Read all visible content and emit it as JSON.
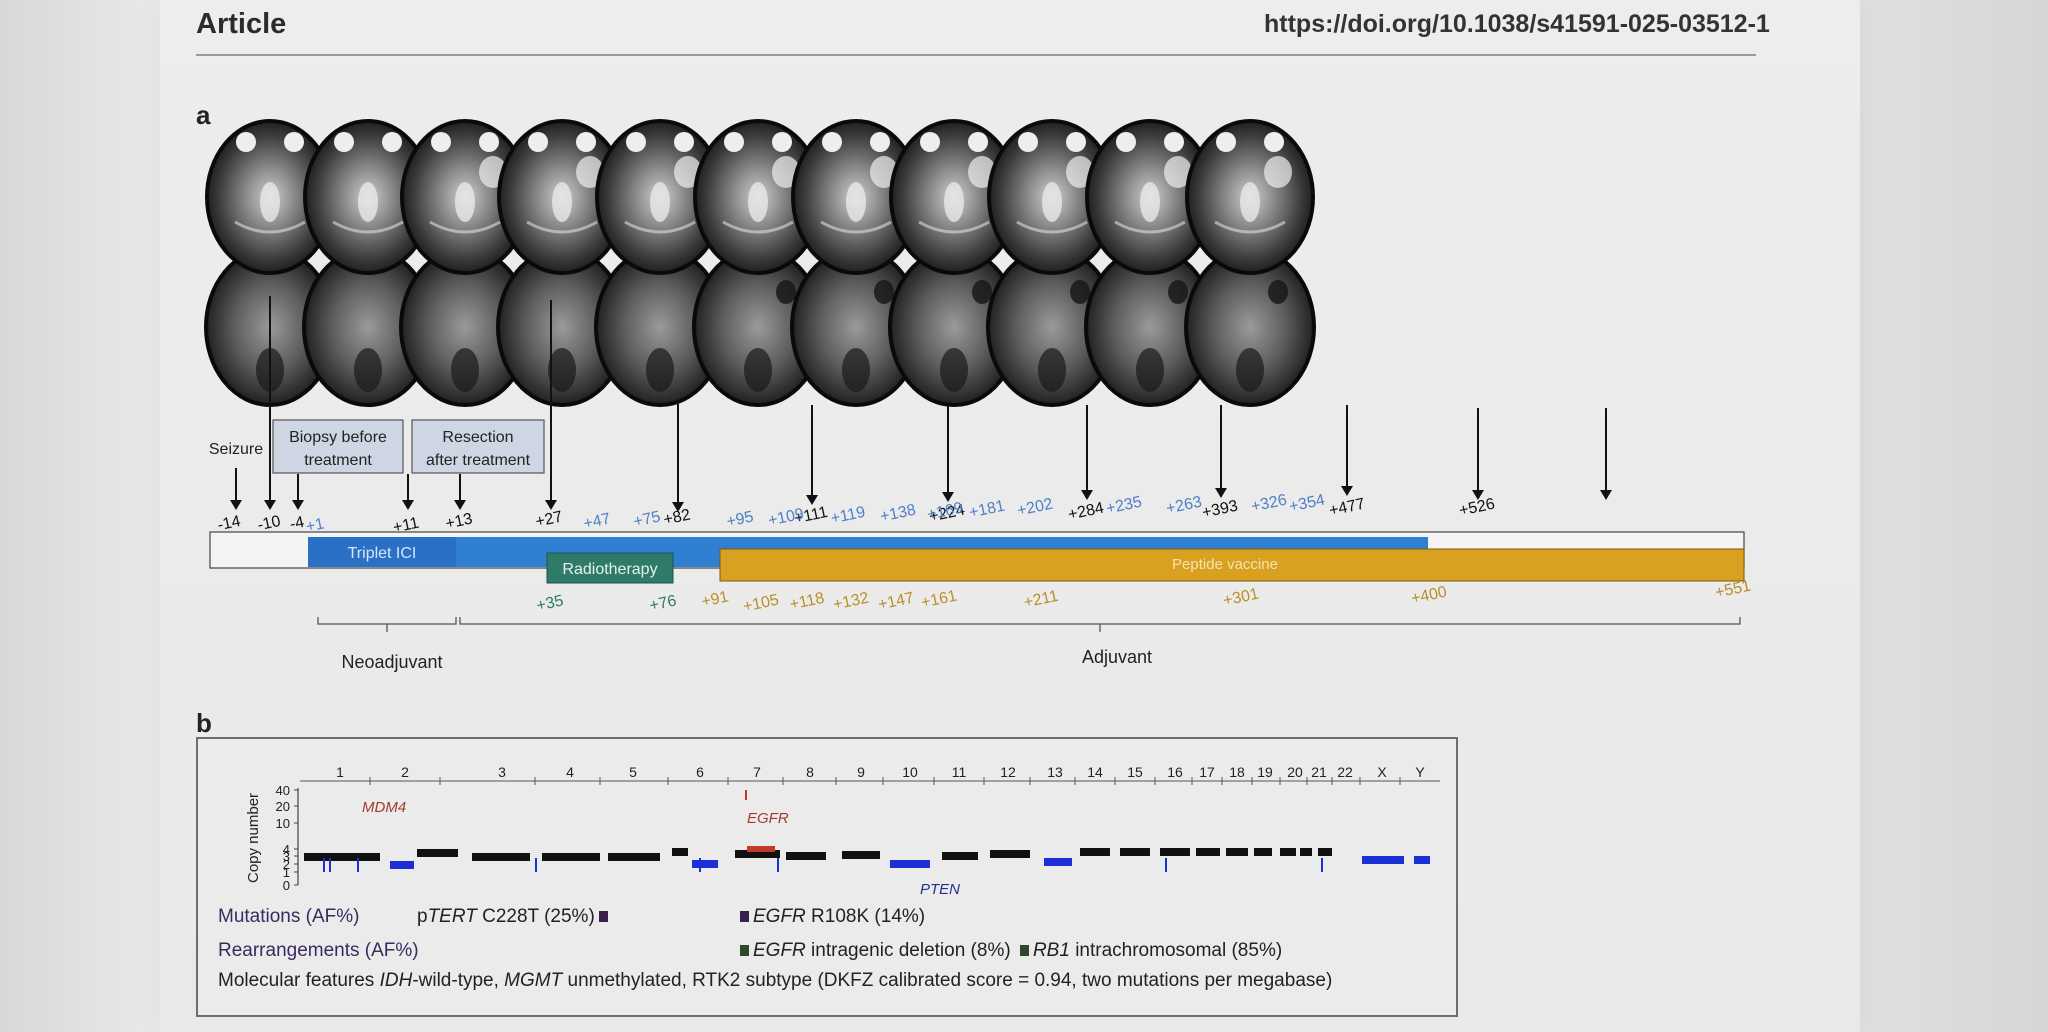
{
  "header": {
    "journal_section": "Article",
    "doi": "https://doi.org/10.1038/s41591-025-03512-1"
  },
  "panel_a": {
    "label": "a",
    "mri_scan_count": 11,
    "events": [
      {
        "label": "Seizure",
        "day": "-14"
      },
      {
        "label": "Biopsy before treatment",
        "line1": "Biopsy before",
        "line2": "treatment",
        "day": "-4"
      },
      {
        "label": "Resection after treatment",
        "line1": "Resection",
        "line2": "after treatment",
        "day": "+13"
      }
    ],
    "top_days_black": [
      "-14",
      "-10",
      "-4",
      "+11",
      "+13",
      "+27",
      "+82",
      "+111",
      "+224",
      "+284",
      "+393",
      "+477",
      "+526"
    ],
    "top_days_blue": [
      "+1",
      "+47",
      "+75",
      "+95",
      "+109",
      "+119",
      "+138",
      "+169",
      "+181",
      "+202",
      "+235",
      "+263",
      "+326",
      "+354"
    ],
    "bottom_days_teal": [
      "+35",
      "+76"
    ],
    "bottom_days_gold": [
      "+91",
      "+105",
      "+118",
      "+132",
      "+147",
      "+161",
      "+211",
      "+301",
      "+400",
      "+551"
    ],
    "bars": {
      "triplet_ici": "Triplet ICI",
      "radiotherapy": "Radiotherapy",
      "peptide_vaccine": "Peptide vaccine"
    },
    "phases": {
      "neoadjuvant": "Neoadjuvant",
      "adjuvant": "Adjuvant"
    },
    "colors": {
      "ici": "#2f7fd3",
      "radiotherapy": "#2f7a68",
      "vaccine": "#d9a11f",
      "blue_text": "#4f7fc9",
      "gold_text": "#b98f2a"
    }
  },
  "panel_b": {
    "label": "b",
    "y_axis_label": "Copy number",
    "y_ticks": [
      "40",
      "20",
      "10",
      "4",
      "3",
      "2",
      "1",
      "0"
    ],
    "chromosomes": [
      "1",
      "2",
      "3",
      "4",
      "5",
      "6",
      "7",
      "8",
      "9",
      "10",
      "11",
      "12",
      "13",
      "14",
      "15",
      "16",
      "17",
      "18",
      "19",
      "20",
      "21",
      "22",
      "X",
      "Y"
    ],
    "gene_labels": {
      "mdm4": "MDM4",
      "egfr": "EGFR",
      "pten": "PTEN"
    },
    "mutations_label": "Mutations (AF%)",
    "mutation_1_gene_prefix": "p",
    "mutation_1_gene": "TERT",
    "mutation_1_rest": " C228T (25%)",
    "mutation_2_gene": "EGFR",
    "mutation_2_rest": " R108K (14%)",
    "rearrangements_label": "Rearrangements (AF%)",
    "rearrangement_1_gene": "EGFR",
    "rearrangement_1_rest": " intragenic deletion (8%)",
    "rearrangement_2_gene": "RB1",
    "rearrangement_2_rest": " intrachromosomal (85%)",
    "molecular_label": "Molecular features",
    "molecular_idh": "IDH",
    "molecular_text_1": "-wild-type, ",
    "molecular_mgmt": "MGMT",
    "molecular_text_2": " unmethylated, RTK2 subtype (DKFZ calibrated score = 0.94, two mutations per megabase)",
    "colors": {
      "neutral": "#111111",
      "loss": "#1b2fd6",
      "gain": "#c43a2a",
      "gene_red": "#a33a2e",
      "gene_blue": "#24308f"
    }
  }
}
